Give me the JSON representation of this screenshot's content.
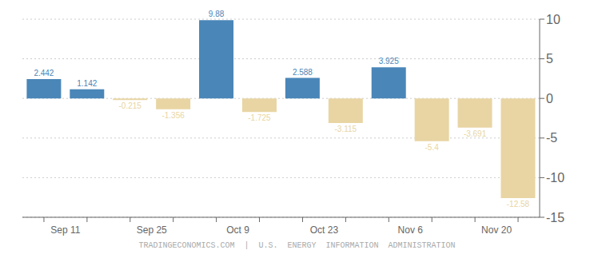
{
  "chart_data": {
    "type": "bar",
    "categories": [
      "Sep 11",
      null,
      "Sep 25",
      null,
      "Oct 9",
      null,
      "Oct 23",
      null,
      "Nov 6",
      null,
      "Nov 20",
      null
    ],
    "values": [
      2.442,
      1.142,
      -0.215,
      -1.356,
      9.88,
      -1.725,
      2.588,
      -3.115,
      3.925,
      -5.4,
      -3.691,
      -12.58
    ],
    "colors": [
      "#4a86b8",
      "#4a86b8",
      "#e8d5a3",
      "#e8d5a3",
      "#4a86b8",
      "#e8d5a3",
      "#4a86b8",
      "#e8d5a3",
      "#4a86b8",
      "#e8d5a3",
      "#e8d5a3",
      "#e8d5a3"
    ],
    "ylim": [
      -15,
      10
    ],
    "yticks": [
      -15,
      -10,
      -5,
      0,
      5,
      10
    ],
    "grid": true,
    "data_labels": true,
    "annotations": [
      "TRADINGECONOMICS.COM  |  U.S.  ENERGY  INFORMATION  ADMINISTRATION"
    ]
  }
}
